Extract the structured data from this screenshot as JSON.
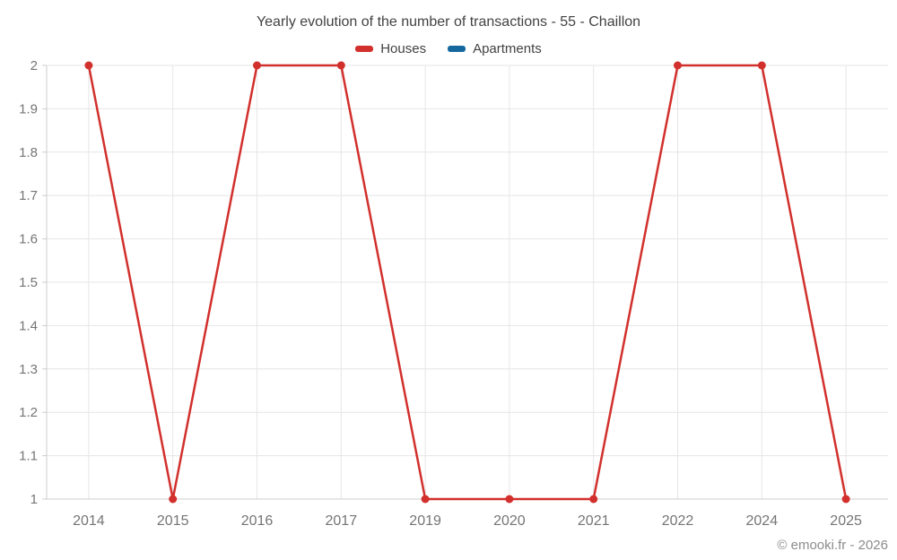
{
  "title": "Yearly evolution of the number of transactions - 55 - Chaillon",
  "watermark": "© emooki.fr - 2026",
  "colors": {
    "houses": "#d2302c",
    "apartments": "#15689e",
    "gridline": "#e6e6e6",
    "axis_line": "#cccccc",
    "tick_label": "#757575",
    "title_text": "#424242",
    "background": "#ffffff"
  },
  "chart_data": {
    "type": "line",
    "title": "Yearly evolution of the number of transactions - 55 - Chaillon",
    "xlabel": "",
    "ylabel": "",
    "categories": [
      "2014",
      "2015",
      "2016",
      "2017",
      "2019",
      "2020",
      "2021",
      "2022",
      "2024",
      "2025"
    ],
    "series": [
      {
        "name": "Houses",
        "color": "#d2302c",
        "values": [
          2,
          1,
          2,
          2,
          1,
          1,
          1,
          2,
          2,
          1
        ]
      },
      {
        "name": "Apartments",
        "color": "#15689e",
        "values": []
      }
    ],
    "ylim": [
      1,
      2
    ],
    "yticks": [
      {
        "value": 1,
        "label": "1"
      },
      {
        "value": 1.1,
        "label": "1.1"
      },
      {
        "value": 1.2,
        "label": "1.2"
      },
      {
        "value": 1.3,
        "label": "1.3"
      },
      {
        "value": 1.4,
        "label": "1.4"
      },
      {
        "value": 1.5,
        "label": "1.5"
      },
      {
        "value": 1.6,
        "label": "1.6"
      },
      {
        "value": 1.7,
        "label": "1.7"
      },
      {
        "value": 1.8,
        "label": "1.8"
      },
      {
        "value": 1.9,
        "label": "1.9"
      },
      {
        "value": 2,
        "label": "2"
      }
    ],
    "grid": true,
    "legend_position": "top"
  }
}
